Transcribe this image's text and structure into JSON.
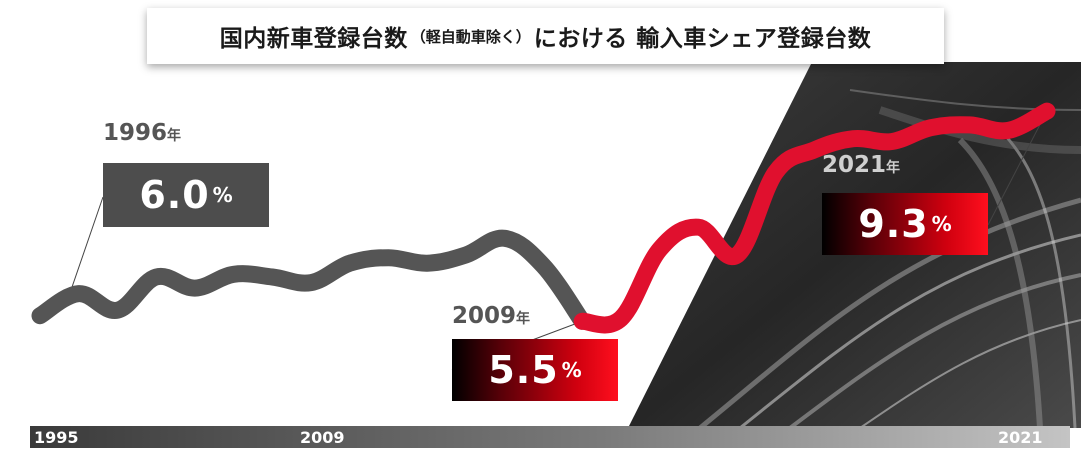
{
  "title": {
    "main_before": "国内新車登録台数",
    "sub": "（軽自動車除く）",
    "main_after": "における 輸入車シェア登録台数"
  },
  "callouts": [
    {
      "year": "1996",
      "unit_year": "年",
      "value": "6.0",
      "unit": "%"
    },
    {
      "year": "2009",
      "unit_year": "年",
      "value": "5.5",
      "unit": "%"
    },
    {
      "year": "2021",
      "unit_year": "年",
      "value": "9.3",
      "unit": "%"
    }
  ],
  "axis": {
    "start": "1995",
    "mid": "2009",
    "end": "2021"
  },
  "colors": {
    "line_gray": "#555555",
    "line_red": "#e0102e",
    "box_gray": "#4d4d4d",
    "accent_red": "#ff0f1e"
  },
  "chart_data": {
    "type": "line",
    "title": "国内新車登録台数（軽自動車除く）における 輸入車シェア登録台数",
    "xlabel": "",
    "ylabel": "",
    "x": [
      1995,
      1996,
      1997,
      1998,
      1999,
      2000,
      2001,
      2002,
      2003,
      2004,
      2005,
      2006,
      2007,
      2008,
      2009,
      2010,
      2011,
      2012,
      2013,
      2014,
      2015,
      2016,
      2017,
      2018,
      2019,
      2020,
      2021
    ],
    "values": [
      5.6,
      6.0,
      5.7,
      6.3,
      6.1,
      6.35,
      6.3,
      6.2,
      6.55,
      6.65,
      6.55,
      6.7,
      7.0,
      6.5,
      5.5,
      5.55,
      6.8,
      7.2,
      6.7,
      8.2,
      8.6,
      8.8,
      8.75,
      9.0,
      9.05,
      8.95,
      9.3
    ],
    "ylim": [
      4.8,
      9.5
    ],
    "segments": [
      {
        "from": 1995,
        "to": 2009,
        "color": "#555555"
      },
      {
        "from": 2009,
        "to": 2021,
        "color": "#e0102e"
      }
    ],
    "annotations": [
      {
        "x": 1996,
        "value": 6.0
      },
      {
        "x": 2009,
        "value": 5.5
      },
      {
        "x": 2021,
        "value": 9.3
      }
    ],
    "grid": false
  }
}
